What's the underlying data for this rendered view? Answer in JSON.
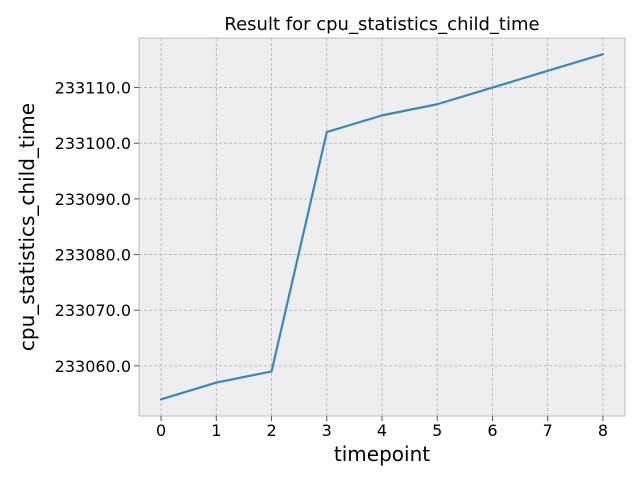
{
  "chart_data": {
    "type": "line",
    "title": "Result for cpu_statistics_child_time",
    "xlabel": "timepoint",
    "ylabel": "cpu_statistics_child_time",
    "x": [
      0,
      1,
      2,
      3,
      4,
      5,
      6,
      7,
      8
    ],
    "series": [
      {
        "values": [
          233054,
          233057,
          233059,
          233102,
          233105,
          233107,
          233110,
          233113,
          233116
        ]
      }
    ],
    "xlim": [
      -0.4,
      8.4
    ],
    "ylim": [
      233051.0,
      233118.9
    ],
    "xticks": [
      "0",
      "1",
      "2",
      "3",
      "4",
      "5",
      "6",
      "7",
      "8"
    ],
    "yticks": [
      "233060.0",
      "233070.0",
      "233080.0",
      "233090.0",
      "233100.0",
      "233110.0"
    ],
    "ytick_values": [
      233060,
      233070,
      233080,
      233090,
      233100,
      233110
    ],
    "grid": true,
    "legend": "none",
    "colors": {
      "line": "#348abd",
      "plot_background": "#eeeeee",
      "grid": "#b2b2b2",
      "axes_edge": "#bcbcbc"
    }
  }
}
